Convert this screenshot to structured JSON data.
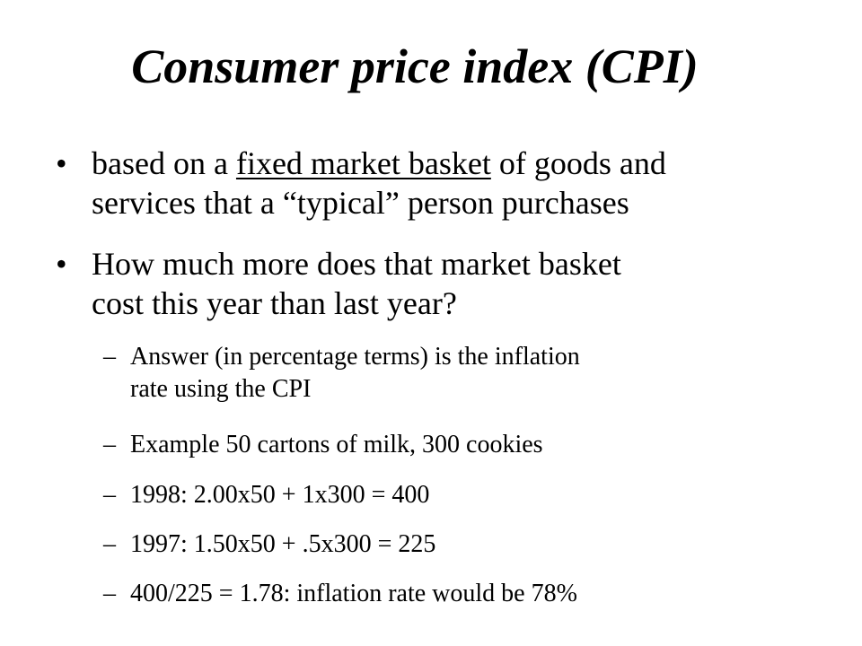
{
  "slide": {
    "title": "Consumer price index (CPI)",
    "bullets": [
      {
        "marker": "•",
        "line1_pre": "based on a ",
        "line1_underlined": "fixed market basket",
        "line1_post": " of goods and",
        "line2": "services that a “typical” person purchases"
      },
      {
        "marker": "•",
        "line1": "How much more does that market basket",
        "line2": "cost this year than last year?"
      }
    ],
    "sub_bullets": [
      {
        "marker": "–",
        "line1": "Answer (in percentage terms) is the inflation",
        "line2": "rate using the CPI"
      },
      {
        "marker": "–",
        "line1": "Example 50 cartons of milk, 300 cookies"
      },
      {
        "marker": "–",
        "line1": "1998: 2.00x50 + 1x300 = 400"
      },
      {
        "marker": "–",
        "line1": "1997: 1.50x50 + .5x300 = 225"
      },
      {
        "marker": "–",
        "line1": "400/225 = 1.78: inflation rate would be 78%"
      }
    ]
  }
}
